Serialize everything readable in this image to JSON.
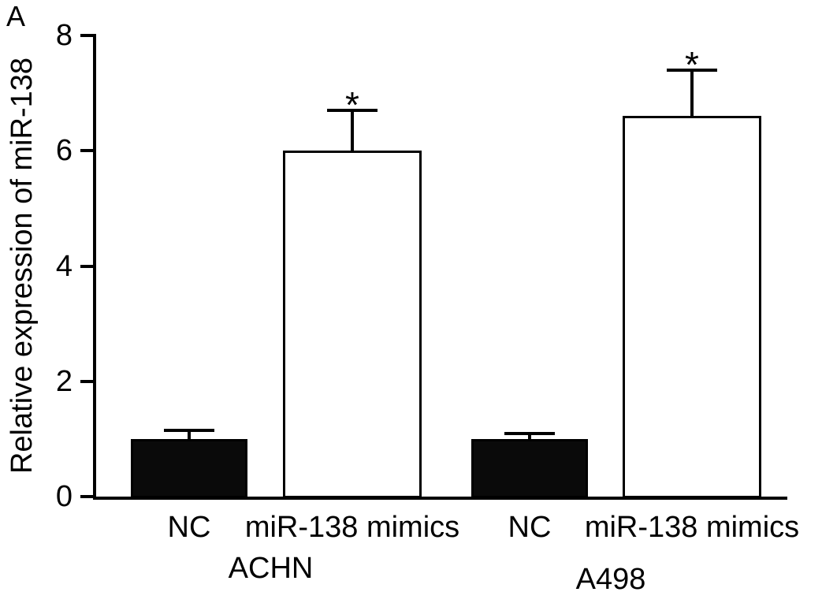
{
  "chart_data": {
    "type": "bar",
    "panel_label": "A",
    "title": "",
    "xlabel": "",
    "ylabel": "Relative expression of miR-138",
    "ylim": [
      0,
      8
    ],
    "yticks": [
      0,
      2,
      4,
      6,
      8
    ],
    "grid": false,
    "legend": "none",
    "bar_style_note": "NC bars solid black, miR-138 mimics bars white with black outline, error bars with top caps",
    "colors": {
      "nc_fill": "#0a0a0a",
      "mimics_fill": "#ffffff",
      "stroke": "#000000",
      "background": "#ffffff"
    },
    "groups": [
      {
        "name": "ACHN",
        "bars": [
          {
            "label": "NC",
            "value": 1.0,
            "error": 0.15,
            "fill": "#0a0a0a",
            "significance": ""
          },
          {
            "label": "miR-138 mimics",
            "value": 6.0,
            "error": 0.7,
            "fill": "#ffffff",
            "significance": "*"
          }
        ]
      },
      {
        "name": "A498",
        "bars": [
          {
            "label": "NC",
            "value": 1.0,
            "error": 0.1,
            "fill": "#0a0a0a",
            "significance": ""
          },
          {
            "label": "miR-138 mimics",
            "value": 6.6,
            "error": 0.8,
            "fill": "#ffffff",
            "significance": "*"
          }
        ]
      }
    ]
  }
}
